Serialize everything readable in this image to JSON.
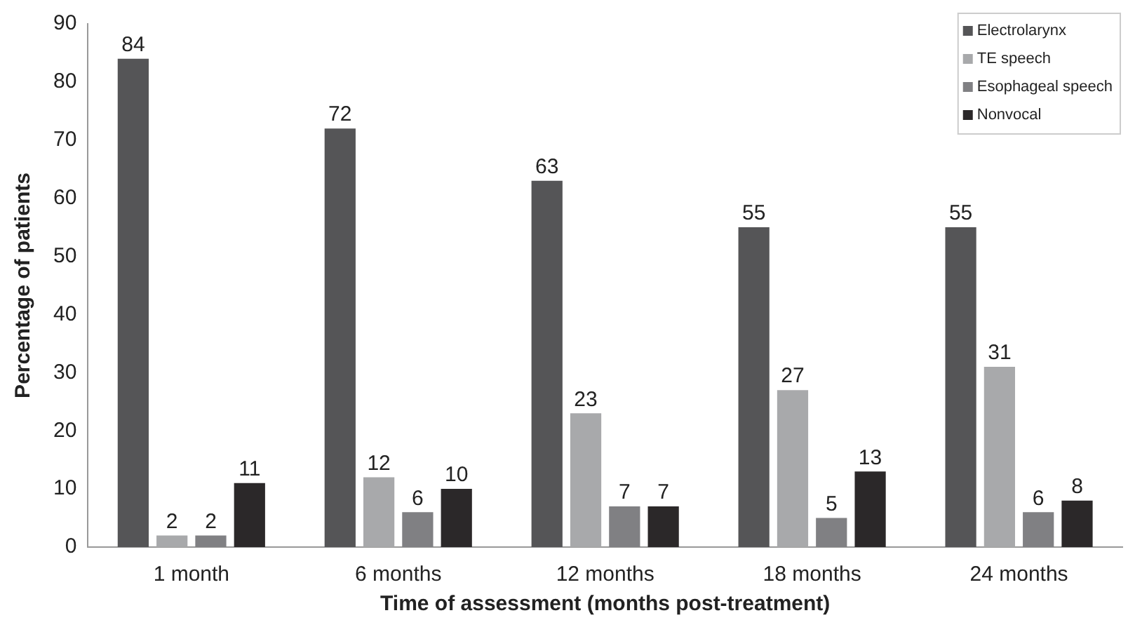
{
  "chart_data": {
    "type": "bar",
    "xlabel": "Time of assessment (months post-treatment)",
    "ylabel": "Percentage of patients",
    "categories": [
      "1 month",
      "6 months",
      "12 months",
      "18 months",
      "24 months"
    ],
    "series": [
      {
        "name": "Electrolarynx",
        "color": "#555557",
        "values": [
          84,
          72,
          63,
          55,
          55
        ]
      },
      {
        "name": "TE speech",
        "color": "#a8a9ab",
        "values": [
          2,
          12,
          23,
          27,
          31
        ]
      },
      {
        "name": "Esophageal speech",
        "color": "#808083",
        "values": [
          2,
          6,
          7,
          5,
          6
        ]
      },
      {
        "name": "Nonvocal",
        "color": "#2b2829",
        "values": [
          11,
          10,
          7,
          13,
          8
        ]
      }
    ],
    "ylim": [
      0,
      90
    ],
    "yticks": [
      0,
      10,
      20,
      30,
      40,
      50,
      60,
      70,
      80,
      90
    ],
    "grid": false,
    "legend": "top right",
    "data_labels": true
  }
}
